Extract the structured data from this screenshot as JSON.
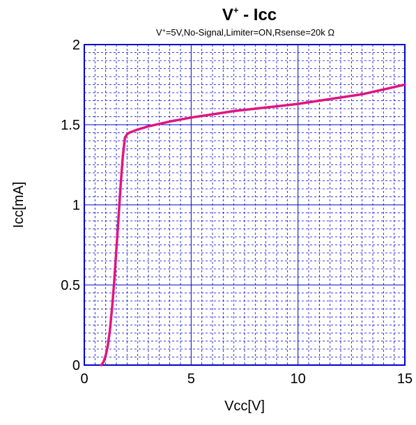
{
  "chart_data": {
    "type": "line",
    "title": "V+ - Icc",
    "title_parts": {
      "base": "V",
      "sup": "+",
      "rest": " - Icc"
    },
    "subtitle": "V+=5V,No-Signal,Limiter=ON,Rsense=20k  Ω",
    "subtitle_parts": {
      "base": "V",
      "sup": "+",
      "rest": "=5V,No-Signal,Limiter=ON,Rsense=20k  Ω"
    },
    "xlabel": "Vcc[V]",
    "ylabel": "Icc[mA]",
    "xlim": [
      0,
      15
    ],
    "ylim": [
      0,
      2
    ],
    "x_ticks": [
      0,
      5,
      10,
      15
    ],
    "y_ticks": [
      0,
      0.5,
      1,
      1.5,
      2
    ],
    "x_tick_labels": [
      "0",
      "5",
      "10",
      "15"
    ],
    "y_tick_labels": [
      "0",
      "0.5",
      "1",
      "1.5",
      "2"
    ],
    "grid": true,
    "colors": {
      "frame": "#0000cc",
      "major_grid": "#0000cc",
      "minor_grid": "#0000cc",
      "series": "#e0157f"
    },
    "series": [
      {
        "x": [
          0.8,
          0.9,
          1.0,
          1.1,
          1.2,
          1.3,
          1.4,
          1.5,
          1.6,
          1.7,
          1.8,
          1.9,
          2.0,
          2.1,
          2.5,
          3.0,
          4.0,
          5.0,
          6.0,
          7.0,
          8.0,
          9.0,
          10.0,
          11.0,
          12.0,
          13.0,
          14.0,
          15.0
        ],
        "y": [
          0.0,
          0.02,
          0.06,
          0.12,
          0.22,
          0.36,
          0.52,
          0.72,
          0.92,
          1.12,
          1.3,
          1.42,
          1.44,
          1.45,
          1.47,
          1.49,
          1.52,
          1.545,
          1.565,
          1.585,
          1.6,
          1.615,
          1.63,
          1.65,
          1.67,
          1.69,
          1.72,
          1.75
        ]
      }
    ]
  }
}
